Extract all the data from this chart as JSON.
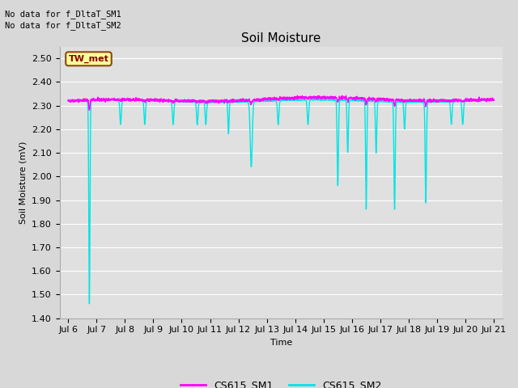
{
  "title": "Soil Moisture",
  "ylabel": "Soil Moisture (mV)",
  "xlabel": "Time",
  "ylim": [
    1.4,
    2.55
  ],
  "yticks": [
    1.4,
    1.5,
    1.6,
    1.7,
    1.8,
    1.9,
    2.0,
    2.1,
    2.2,
    2.3,
    2.4,
    2.5
  ],
  "fig_bg_color": "#d8d8d8",
  "plot_bg_color": "#e0e0e0",
  "sm1_color": "#ff00ff",
  "sm2_color": "#00e5e5",
  "no_data_text1": "No data for f_DltaT_SM1",
  "no_data_text2": "No data for f_DltaT_SM2",
  "tw_met_label": "TW_met",
  "legend_sm1": "CS615_SM1",
  "legend_sm2": "CS615_SM2",
  "x_tick_labels": [
    "Jul 6",
    "Jul 7",
    "Jul 8",
    "Jul 9",
    "Jul 10",
    "Jul 11",
    "Jul 12",
    "Jul 13",
    "Jul 14",
    "Jul 15",
    "Jul 16",
    "Jul 17",
    "Jul 18",
    "Jul 19",
    "Jul 20",
    "Jul 21"
  ],
  "grid_color": "#ffffff",
  "title_fontsize": 11,
  "label_fontsize": 8,
  "tick_fontsize": 8,
  "nodata_fontsize": 7.5,
  "tw_fontsize": 8
}
